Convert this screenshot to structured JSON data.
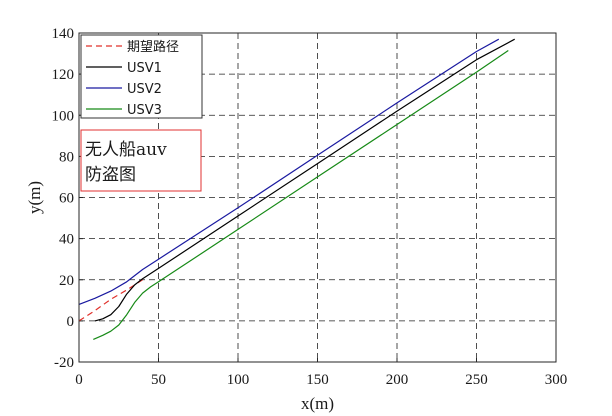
{
  "chart_data": {
    "type": "line",
    "xlabel": "x(m)",
    "ylabel": "y(m)",
    "xlim": [
      0,
      300
    ],
    "ylim": [
      -20,
      140
    ],
    "xticks": [
      0,
      50,
      100,
      150,
      200,
      250,
      300
    ],
    "yticks": [
      -20,
      0,
      20,
      40,
      60,
      80,
      100,
      120,
      140
    ],
    "grid": true,
    "grid_style": "dashed",
    "legend_position": "top-left",
    "series": [
      {
        "name": "期望路径",
        "color": "#e0302a",
        "dash": "dashed",
        "x": [
          0,
          10,
          20,
          30,
          40
        ],
        "y": [
          0,
          5,
          10.5,
          15,
          20
        ]
      },
      {
        "name": "USV1",
        "color": "#000000",
        "dash": "solid",
        "x": [
          10,
          15,
          20,
          25,
          30,
          35,
          40,
          50,
          100,
          150,
          200,
          250,
          274
        ],
        "y": [
          0,
          1,
          3,
          7,
          13,
          17.5,
          20.5,
          25.5,
          51,
          76.5,
          102,
          127,
          137
        ]
      },
      {
        "name": "USV2",
        "color": "#1a1aa0",
        "dash": "solid",
        "x": [
          0,
          10,
          20,
          30,
          40,
          50,
          100,
          150,
          200,
          250,
          264
        ],
        "y": [
          8,
          11,
          14.5,
          19,
          25,
          30,
          55,
          80.5,
          106,
          131,
          137
        ]
      },
      {
        "name": "USV3",
        "color": "#178a17",
        "dash": "solid",
        "x": [
          9,
          15,
          20,
          25,
          30,
          35,
          40,
          45,
          50,
          100,
          150,
          200,
          250,
          270
        ],
        "y": [
          -9,
          -7,
          -5,
          -2,
          3,
          9,
          13.5,
          16.5,
          19,
          44.5,
          70,
          95.5,
          121,
          131.5
        ]
      }
    ],
    "annotation": {
      "lines": [
        "无人船auv",
        "防盗图"
      ],
      "border_color": "#e03030"
    }
  }
}
